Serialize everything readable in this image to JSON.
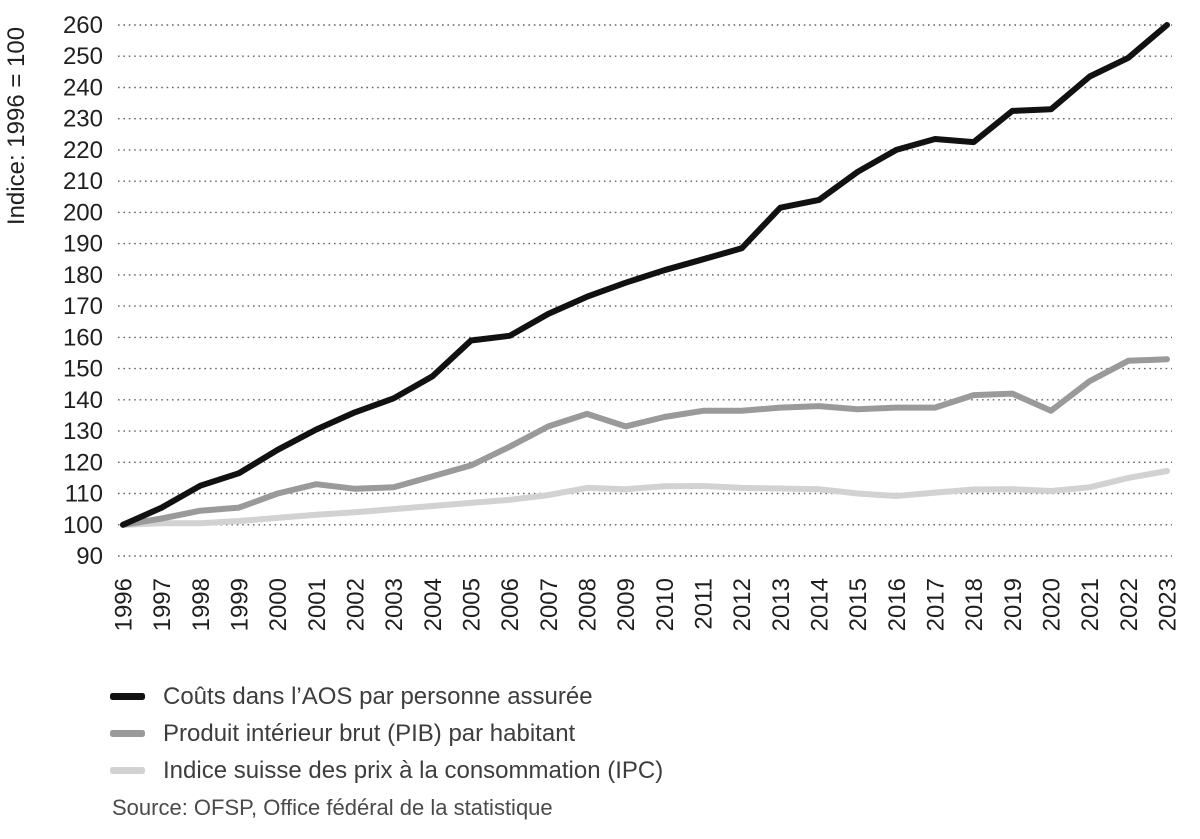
{
  "chart_data": {
    "type": "line",
    "title": "",
    "xlabel": "",
    "ylabel": "Indice: 1996 = 100",
    "ylim": [
      90,
      260
    ],
    "ytick_step": 10,
    "grid": "dotted-horizontal",
    "legend_position": "bottom-left",
    "x": [
      "1996",
      "1997",
      "1998",
      "1999",
      "2000",
      "2001",
      "2002",
      "2003",
      "2004",
      "2005",
      "2006",
      "2007",
      "2008",
      "2009",
      "2010",
      "2011",
      "2012",
      "2013",
      "2014",
      "2015",
      "2016",
      "2017",
      "2018",
      "2019",
      "2020",
      "2021",
      "2022",
      "2023"
    ],
    "series": [
      {
        "id": "aos",
        "name": "Coûts dans l’AOS par personne assurée",
        "color": "#111111",
        "values": [
          100,
          105.5,
          112.5,
          116.5,
          124,
          130.5,
          136,
          140.5,
          147.5,
          159,
          160.5,
          167.5,
          173,
          177.5,
          181.5,
          185,
          188.5,
          201.5,
          204,
          213,
          220,
          223.5,
          222.5,
          232.5,
          233,
          243.5,
          249.5,
          260
        ]
      },
      {
        "id": "pib",
        "name": "Produit intérieur brut (PIB) par habitant",
        "color": "#9a9a9a",
        "values": [
          100,
          102,
          104.5,
          105.5,
          110,
          113,
          111.5,
          112,
          115.5,
          119,
          125,
          131.5,
          135.5,
          131.5,
          134.5,
          136.5,
          136.5,
          137.5,
          138,
          137,
          137.5,
          137.5,
          141.5,
          142,
          136.5,
          146,
          152.5,
          153
        ]
      },
      {
        "id": "ipc",
        "name": "Indice suisse des prix à la consommation (IPC)",
        "color": "#d2d2d2",
        "values": [
          100,
          100.5,
          100.5,
          101.2,
          102.2,
          103.2,
          104,
          105,
          106,
          107,
          108,
          109.5,
          111.8,
          111.4,
          112.3,
          112.4,
          111.8,
          111.6,
          111.4,
          110,
          109.2,
          110.3,
          111.3,
          111.4,
          110.8,
          112,
          115,
          117.2
        ]
      }
    ],
    "source": "Source: OFSP, Office fédéral de la statistique"
  }
}
